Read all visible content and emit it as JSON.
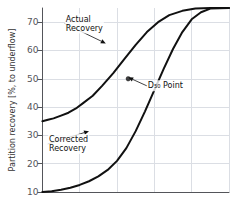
{
  "chart_data": {
    "type": "line",
    "ylabel": "Partition recovery [%, to underflow]",
    "xlim": [
      0,
      1
    ],
    "ylim": [
      10,
      75
    ],
    "yticks": [
      10,
      20,
      30,
      40,
      50,
      60,
      70
    ],
    "grid": true,
    "tick_labels": "y",
    "series": [
      {
        "type": "line",
        "color": "#111111",
        "x": [
          0.0,
          0.03,
          0.06,
          0.1,
          0.14,
          0.18,
          0.22,
          0.27,
          0.32,
          0.38,
          0.44,
          0.5,
          0.56,
          0.62,
          0.68,
          0.75,
          0.82,
          0.9,
          1.0
        ],
        "values": [
          35.0,
          35.5,
          36.0,
          37.0,
          38.0,
          39.5,
          41.5,
          44.0,
          47.5,
          52.0,
          57.0,
          62.0,
          66.5,
          70.0,
          72.5,
          74.0,
          74.8,
          75.0,
          75.0
        ]
      },
      {
        "type": "line",
        "color": "#111111",
        "x": [
          0.0,
          0.05,
          0.1,
          0.15,
          0.2,
          0.25,
          0.3,
          0.35,
          0.4,
          0.45,
          0.5,
          0.55,
          0.6,
          0.65,
          0.7,
          0.75,
          0.8,
          0.85,
          0.9,
          1.0
        ],
        "values": [
          10.0,
          10.3,
          10.8,
          11.5,
          12.5,
          13.8,
          15.5,
          17.8,
          21.0,
          25.5,
          31.5,
          38.5,
          46.0,
          53.5,
          60.5,
          66.5,
          71.0,
          73.5,
          74.8,
          75.0
        ]
      },
      {
        "type": "scatter",
        "marker": "o",
        "color": "#111111",
        "x": [
          0.46
        ],
        "values": [
          50
        ]
      }
    ],
    "annotations": [
      {
        "text": "Actual\nRecovery",
        "x": 0.12,
        "y": 69.5,
        "target": [
          0.34,
          62.5
        ]
      },
      {
        "text": "Corrected\nRecovery",
        "x": 0.03,
        "y": 27.0,
        "target": [
          0.25,
          31.5
        ]
      },
      {
        "text": "D₅₀ Point",
        "x": 0.56,
        "y": 47.5,
        "target": [
          0.46,
          50.5
        ]
      }
    ]
  }
}
